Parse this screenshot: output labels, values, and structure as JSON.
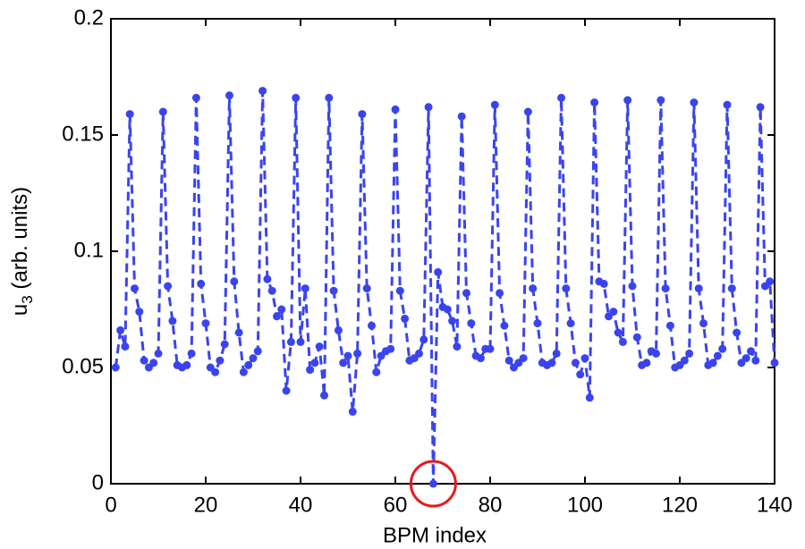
{
  "chart_data": {
    "type": "line",
    "xlabel": "BPM index",
    "ylabel": {
      "text": "u",
      "subscript": "3",
      "suffix": " (arb. units)"
    },
    "x": [
      1,
      2,
      3,
      4,
      5,
      6,
      7,
      8,
      9,
      10,
      11,
      12,
      13,
      14,
      15,
      16,
      17,
      18,
      19,
      20,
      21,
      22,
      23,
      24,
      25,
      26,
      27,
      28,
      29,
      30,
      31,
      32,
      33,
      34,
      35,
      36,
      37,
      38,
      39,
      40,
      41,
      42,
      43,
      44,
      45,
      46,
      47,
      48,
      49,
      50,
      51,
      52,
      53,
      54,
      55,
      56,
      57,
      58,
      59,
      60,
      61,
      62,
      63,
      64,
      65,
      66,
      67,
      68,
      69,
      70,
      71,
      72,
      73,
      74,
      75,
      76,
      77,
      78,
      79,
      80,
      81,
      82,
      83,
      84,
      85,
      86,
      87,
      88,
      89,
      90,
      91,
      92,
      93,
      94,
      95,
      96,
      97,
      98,
      99,
      100,
      101,
      102,
      103,
      104,
      105,
      106,
      107,
      108,
      109,
      110,
      111,
      112,
      113,
      114,
      115,
      116,
      117,
      118,
      119,
      120,
      121,
      122,
      123,
      124,
      125,
      126,
      127,
      128,
      129,
      130,
      131,
      132,
      133,
      134,
      135,
      136,
      137,
      138,
      139,
      140
    ],
    "series": [
      {
        "name": "u3",
        "color": "#3a44ee",
        "values": [
          0.05,
          0.066,
          0.059,
          0.159,
          0.084,
          0.074,
          0.053,
          0.05,
          0.052,
          0.056,
          0.16,
          0.085,
          0.07,
          0.051,
          0.05,
          0.051,
          0.056,
          0.166,
          0.086,
          0.069,
          0.05,
          0.048,
          0.053,
          0.06,
          0.167,
          0.087,
          0.065,
          0.048,
          0.051,
          0.054,
          0.057,
          0.169,
          0.088,
          0.083,
          0.072,
          0.075,
          0.04,
          0.061,
          0.166,
          0.061,
          0.084,
          0.049,
          0.052,
          0.059,
          0.038,
          0.166,
          0.083,
          0.066,
          0.052,
          0.055,
          0.031,
          0.056,
          0.159,
          0.084,
          0.068,
          0.048,
          0.055,
          0.057,
          0.058,
          0.161,
          0.083,
          0.071,
          0.053,
          0.054,
          0.056,
          0.062,
          0.162,
          0.0,
          0.091,
          0.076,
          0.075,
          0.07,
          0.059,
          0.158,
          0.082,
          0.069,
          0.055,
          0.054,
          0.058,
          0.058,
          0.163,
          0.082,
          0.068,
          0.053,
          0.05,
          0.052,
          0.054,
          0.16,
          0.084,
          0.069,
          0.052,
          0.051,
          0.052,
          0.056,
          0.166,
          0.084,
          0.069,
          0.052,
          0.047,
          0.054,
          0.037,
          0.164,
          0.087,
          0.086,
          0.072,
          0.074,
          0.065,
          0.061,
          0.165,
          0.085,
          0.063,
          0.051,
          0.052,
          0.057,
          0.056,
          0.165,
          0.084,
          0.068,
          0.05,
          0.051,
          0.053,
          0.056,
          0.164,
          0.084,
          0.069,
          0.051,
          0.052,
          0.055,
          0.058,
          0.163,
          0.084,
          0.065,
          0.052,
          0.054,
          0.057,
          0.053,
          0.162,
          0.085,
          0.087,
          0.052
        ]
      }
    ],
    "highlight_color": "#e8191c",
    "xlim": [
      0,
      140
    ],
    "xticks": [
      0,
      20,
      40,
      60,
      80,
      100,
      120,
      140
    ],
    "ylim": [
      0,
      0.2
    ],
    "yticks": [
      0,
      0.05,
      0.1,
      0.15,
      0.2
    ]
  }
}
